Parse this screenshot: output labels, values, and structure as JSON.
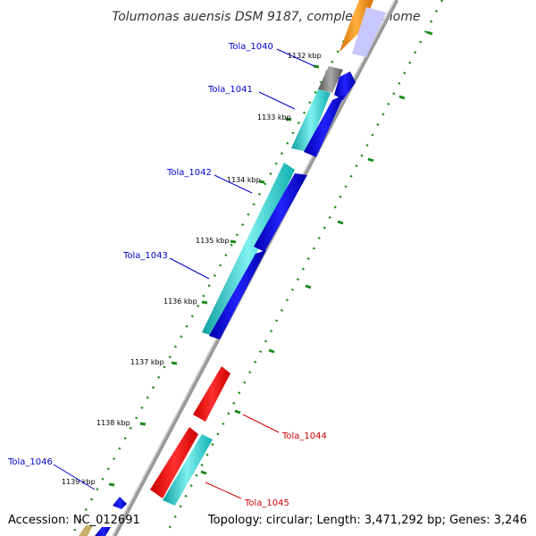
{
  "title": "Tolumonas auensis DSM 9187, complete genome",
  "accession": "Accession: NC_012691",
  "summary": "Topology: circular; Length: 3,471,292 bp; Genes: 3,246",
  "ticks": [
    "1132 kbp",
    "1133 kbp",
    "1134 kbp",
    "1135 kbp",
    "1136 kbp",
    "1137 kbp",
    "1138 kbp",
    "1139 kbp"
  ],
  "genes": [
    {
      "name": "Tola_1040",
      "color": "#0000cc"
    },
    {
      "name": "Tola_1041",
      "color": "#0000cc"
    },
    {
      "name": "Tola_1042",
      "color": "#0000cc"
    },
    {
      "name": "Tola_1043",
      "color": "#0000cc"
    },
    {
      "name": "Tola_1044",
      "color": "#cc0000"
    },
    {
      "name": "Tola_1045",
      "color": "#cc0000"
    },
    {
      "name": "Tola_1046",
      "color": "#0000cc"
    }
  ],
  "colors": {
    "blue": "#0000ee",
    "cyan": "#1ec8c8",
    "red": "#ee0000",
    "orange": "#f08c00",
    "gray": "#777777",
    "green": "#228822",
    "backbone": "#888888"
  }
}
